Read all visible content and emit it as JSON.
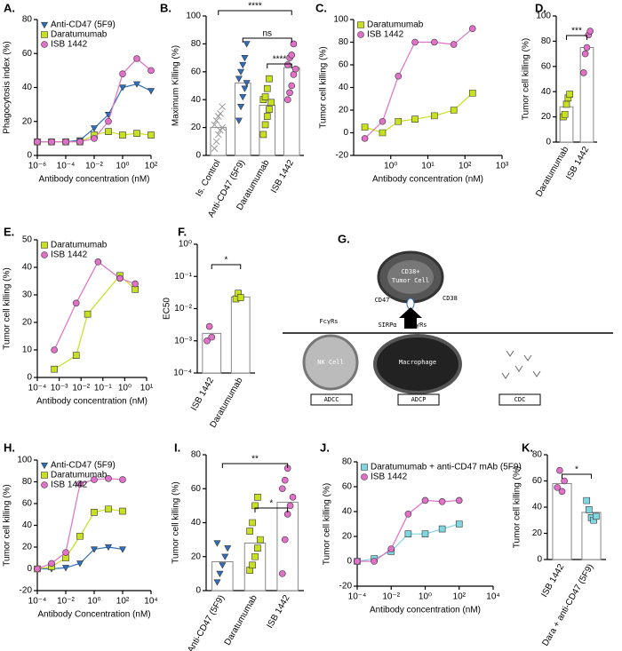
{
  "chart_data": [
    {
      "type": "line",
      "title": "A.",
      "xlabel": "Antibody concentration (nM)",
      "ylabel": "Phagocytosis index (%)",
      "xlog": true,
      "xlim": [
        1e-06,
        100
      ],
      "xticks": [
        {
          "value": 1e-06,
          "label": "10⁻⁶"
        },
        {
          "value": 0.0001,
          "label": "10⁻⁴"
        },
        {
          "value": 0.01,
          "label": "10⁻²"
        },
        {
          "value": 1,
          "label": "10⁰"
        },
        {
          "value": 100,
          "label": "10²"
        }
      ],
      "ylim": [
        0,
        80
      ],
      "yticks": [
        0,
        20,
        40,
        60,
        80
      ],
      "legend": "upper left",
      "series": [
        {
          "name": "Anti-CD47 (5F9)",
          "color": "#2f6fc0",
          "marker": "triangle-down",
          "x": [
            1e-06,
            1e-05,
            0.0001,
            0.001,
            0.01,
            0.1,
            1,
            10,
            100
          ],
          "values": [
            8,
            8,
            8,
            9,
            16,
            24,
            40,
            42,
            38
          ]
        },
        {
          "name": "Daratumumab",
          "color": "#c8e020",
          "marker": "square",
          "x": [
            1e-06,
            1e-05,
            0.0001,
            0.001,
            0.01,
            0.1,
            1,
            10,
            100
          ],
          "values": [
            8,
            8,
            8,
            8,
            12,
            14,
            12,
            13,
            12
          ]
        },
        {
          "name": "ISB 1442",
          "color": "#e070c8",
          "marker": "circle",
          "x": [
            1e-06,
            1e-05,
            0.0001,
            0.001,
            0.01,
            0.1,
            1,
            10,
            100
          ],
          "values": [
            8,
            8,
            8,
            8,
            10,
            20,
            48,
            57,
            50
          ]
        }
      ]
    },
    {
      "type": "dotbar",
      "title": "B.",
      "ylabel": "Maximum Killing (%)",
      "categories": [
        "Is. Control",
        "Anti-CD47 (5F9)",
        "Daratumumab",
        "ISB 1442"
      ],
      "values": [
        20,
        52,
        36,
        63
      ],
      "colors": [
        "#999999",
        "#2f6fc0",
        "#c8e020",
        "#e070c8"
      ],
      "markers": [
        "cross",
        "triangle-down",
        "square",
        "circle"
      ],
      "points": [
        [
          5,
          10,
          15,
          18,
          20,
          22,
          25,
          28,
          30,
          35
        ],
        [
          25,
          35,
          42,
          48,
          52,
          55,
          60,
          65,
          70,
          80
        ],
        [
          15,
          22,
          28,
          33,
          38,
          40,
          42,
          48,
          55
        ],
        [
          40,
          45,
          50,
          58,
          62,
          65,
          70,
          72,
          80
        ]
      ],
      "ylim": [
        0,
        100
      ],
      "yticks": [
        0,
        20,
        40,
        60,
        80,
        100
      ],
      "annotations": [
        "****",
        "ns",
        "****"
      ]
    },
    {
      "type": "line",
      "title": "C.",
      "xlabel": "Antibody concentration (nM)",
      "ylabel": "Tumor cell killing (%)",
      "xlog": true,
      "xlim": [
        0.1,
        1000
      ],
      "xticks": [
        {
          "value": 1,
          "label": "10⁰"
        },
        {
          "value": 10,
          "label": "10¹"
        },
        {
          "value": 100,
          "label": "10²"
        },
        {
          "value": 1000,
          "label": "10³"
        }
      ],
      "ylim": [
        -20,
        100
      ],
      "yticks": [
        -20,
        0,
        20,
        40,
        60,
        80,
        100
      ],
      "legend": "upper left",
      "series": [
        {
          "name": "Daratumumab",
          "color": "#c8e020",
          "marker": "square",
          "x": [
            0.2,
            0.6,
            1.6,
            4.5,
            15,
            50,
            160
          ],
          "values": [
            5,
            0,
            10,
            12,
            15,
            20,
            35
          ]
        },
        {
          "name": "ISB 1442",
          "color": "#e070c8",
          "marker": "circle",
          "x": [
            0.2,
            0.6,
            1.6,
            4.5,
            15,
            50,
            160
          ],
          "values": [
            -5,
            10,
            50,
            80,
            80,
            78,
            92
          ]
        }
      ]
    },
    {
      "type": "dotbar",
      "title": "D.",
      "ylabel": "Tumor cell killing (%)",
      "categories": [
        "Daratumumab",
        "ISB 1442"
      ],
      "values": [
        28,
        75
      ],
      "colors": [
        "#c8e020",
        "#e070c8"
      ],
      "markers": [
        "square",
        "circle"
      ],
      "points": [
        [
          20,
          22,
          30,
          35,
          38
        ],
        [
          55,
          70,
          75,
          85,
          88
        ]
      ],
      "ylim": [
        0,
        100
      ],
      "yticks": [
        0,
        20,
        40,
        60,
        80,
        100
      ],
      "annotations": [
        "***"
      ]
    },
    {
      "type": "line",
      "title": "E.",
      "xlabel": "Antibody concentration (nM)",
      "ylabel": "Tumor cell killing (%)",
      "xlog": true,
      "xlim": [
        0.0001,
        10
      ],
      "xticks": [
        {
          "value": 0.0001,
          "label": "10⁻⁴"
        },
        {
          "value": 0.001,
          "label": "10⁻³"
        },
        {
          "value": 0.01,
          "label": "10⁻²"
        },
        {
          "value": 0.1,
          "label": "10⁻¹"
        },
        {
          "value": 1,
          "label": "10⁰"
        },
        {
          "value": 10,
          "label": "10¹"
        }
      ],
      "ylim": [
        0,
        50
      ],
      "yticks": [
        0,
        10,
        20,
        30,
        40,
        50
      ],
      "legend": "upper left",
      "series": [
        {
          "name": "Daratumumab",
          "color": "#c8e020",
          "marker": "square",
          "x": [
            0.0006,
            0.006,
            0.02,
            0.6,
            3
          ],
          "values": [
            3,
            8,
            23,
            37,
            32
          ]
        },
        {
          "name": "ISB 1442",
          "color": "#e070c8",
          "marker": "circle",
          "x": [
            0.0006,
            0.006,
            0.06,
            0.6,
            3
          ],
          "values": [
            10,
            27,
            42,
            36,
            34
          ]
        }
      ]
    },
    {
      "type": "dotbar",
      "title": "F.",
      "ylabel": "EC50",
      "ylog": true,
      "categories": [
        "ISB 1442",
        "Daratumumab"
      ],
      "values": [
        0.0017,
        0.023
      ],
      "colors": [
        "#e070c8",
        "#c8e020"
      ],
      "markers": [
        "circle",
        "square"
      ],
      "points": [
        [
          0.001,
          0.0028,
          0.0013
        ],
        [
          0.02,
          0.03,
          0.022
        ]
      ],
      "ylim": [
        0.0001,
        1
      ],
      "yticks": [
        {
          "value": 0.0001,
          "label": "10⁻⁴"
        },
        {
          "value": 0.001,
          "label": "10⁻³"
        },
        {
          "value": 0.01,
          "label": "10⁻²"
        },
        {
          "value": 0.1,
          "label": "10⁻¹"
        },
        {
          "value": 1,
          "label": "10⁰"
        }
      ],
      "annotations": [
        "*"
      ]
    },
    {
      "type": "line",
      "title": "H.",
      "xlabel": "Antibody Concentration (nM)",
      "ylabel": "Tumor cell killing (%)",
      "xlog": true,
      "xlim": [
        0.0001,
        10000
      ],
      "xticks": [
        {
          "value": 0.0001,
          "label": "10⁻⁴"
        },
        {
          "value": 0.01,
          "label": "10⁻²"
        },
        {
          "value": 1,
          "label": "10⁰"
        },
        {
          "value": 100,
          "label": "10²"
        },
        {
          "value": 10000,
          "label": "10⁴"
        }
      ],
      "ylim": [
        -20,
        100
      ],
      "yticks": [
        -20,
        0,
        20,
        40,
        60,
        80,
        100
      ],
      "legend": "upper left",
      "series": [
        {
          "name": "Anti-CD47 (5F9)",
          "color": "#2f6fc0",
          "marker": "triangle-down",
          "x": [
            0.0001,
            0.001,
            0.01,
            0.1,
            1,
            10,
            100
          ],
          "values": [
            0,
            0,
            1,
            5,
            18,
            20,
            18
          ]
        },
        {
          "name": "Daratumumab",
          "color": "#c8e020",
          "marker": "square",
          "x": [
            0.0001,
            0.001,
            0.01,
            0.1,
            1,
            10,
            100
          ],
          "values": [
            0,
            2,
            10,
            30,
            52,
            55,
            53
          ]
        },
        {
          "name": "ISB 1442",
          "color": "#e070c8",
          "marker": "circle",
          "x": [
            0.0001,
            0.001,
            0.01,
            0.1,
            1,
            10,
            100
          ],
          "values": [
            0,
            5,
            15,
            78,
            82,
            83,
            82
          ]
        }
      ]
    },
    {
      "type": "dotbar",
      "title": "I.",
      "ylabel": "Tumor cell killing (%)",
      "categories": [
        "Anti-CD47 (5F9)",
        "Daratumumab",
        "ISB 1442"
      ],
      "values": [
        17,
        28,
        52
      ],
      "colors": [
        "#2f6fc0",
        "#c8e020",
        "#e070c8"
      ],
      "markers": [
        "triangle-down",
        "square",
        "circle"
      ],
      "points": [
        [
          5,
          10,
          15,
          20,
          25,
          28
        ],
        [
          12,
          15,
          20,
          25,
          30,
          35,
          40,
          50,
          55
        ],
        [
          10,
          30,
          45,
          50,
          55,
          60,
          65,
          72
        ]
      ],
      "ylim": [
        0,
        80
      ],
      "yticks": [
        0,
        20,
        40,
        60,
        80
      ],
      "annotations": [
        "**",
        "*"
      ]
    },
    {
      "type": "line",
      "title": "J.",
      "xlabel": "Antibody concentration (nM)",
      "ylabel": "Tumor cell  killing (%)",
      "xlog": true,
      "xlim": [
        0.0001,
        10000
      ],
      "xticks": [
        {
          "value": 0.0001,
          "label": "10⁻⁴"
        },
        {
          "value": 0.01,
          "label": "10⁻²"
        },
        {
          "value": 1,
          "label": "10⁰"
        },
        {
          "value": 100,
          "label": "10²"
        },
        {
          "value": 10000,
          "label": "10⁴"
        }
      ],
      "ylim": [
        -20,
        80
      ],
      "yticks": [
        -20,
        0,
        20,
        40,
        60,
        80
      ],
      "legend": "upper left",
      "series": [
        {
          "name": "Daratumumab + anti-CD47 mAb (5F9)",
          "color": "#7fd6e0",
          "marker": "square",
          "x": [
            0.0001,
            0.001,
            0.01,
            0.1,
            1,
            10,
            100
          ],
          "values": [
            0,
            2,
            8,
            22,
            22,
            26,
            30
          ]
        },
        {
          "name": "ISB 1442",
          "color": "#e070c8",
          "marker": "circle",
          "x": [
            0.0001,
            0.001,
            0.01,
            0.1,
            1,
            10,
            100
          ],
          "values": [
            0,
            0,
            10,
            38,
            49,
            48,
            49
          ]
        }
      ]
    },
    {
      "type": "dotbar",
      "title": "K.",
      "ylabel": "Tumor cell  killing (%)",
      "categories": [
        "ISB 1442",
        "Dara + anti-CD47 (5F9)"
      ],
      "values": [
        58,
        36
      ],
      "colors": [
        "#e070c8",
        "#7fd6e0"
      ],
      "markers": [
        "circle",
        "square"
      ],
      "points": [
        [
          55,
          68,
          52,
          60
        ],
        [
          45,
          38,
          32,
          30,
          33
        ]
      ],
      "ylim": [
        0,
        80
      ],
      "yticks": [
        0,
        20,
        40,
        60,
        80
      ],
      "annotations": [
        "*"
      ]
    }
  ],
  "diagram": {
    "label": "G.",
    "tumor_line1": "CD38+",
    "tumor_line2": "Tumor Cell",
    "cd47": "CD47",
    "cd38": "CD38",
    "nk_receptor": "FcγRs",
    "nk_cell": "NK Cell",
    "sirpa": "SIRPα",
    "mac_receptor": "FcγRs",
    "macrophage": "Macrophage",
    "adcc": "ADCC",
    "adcp": "ADCP",
    "cdc": "CDC"
  }
}
